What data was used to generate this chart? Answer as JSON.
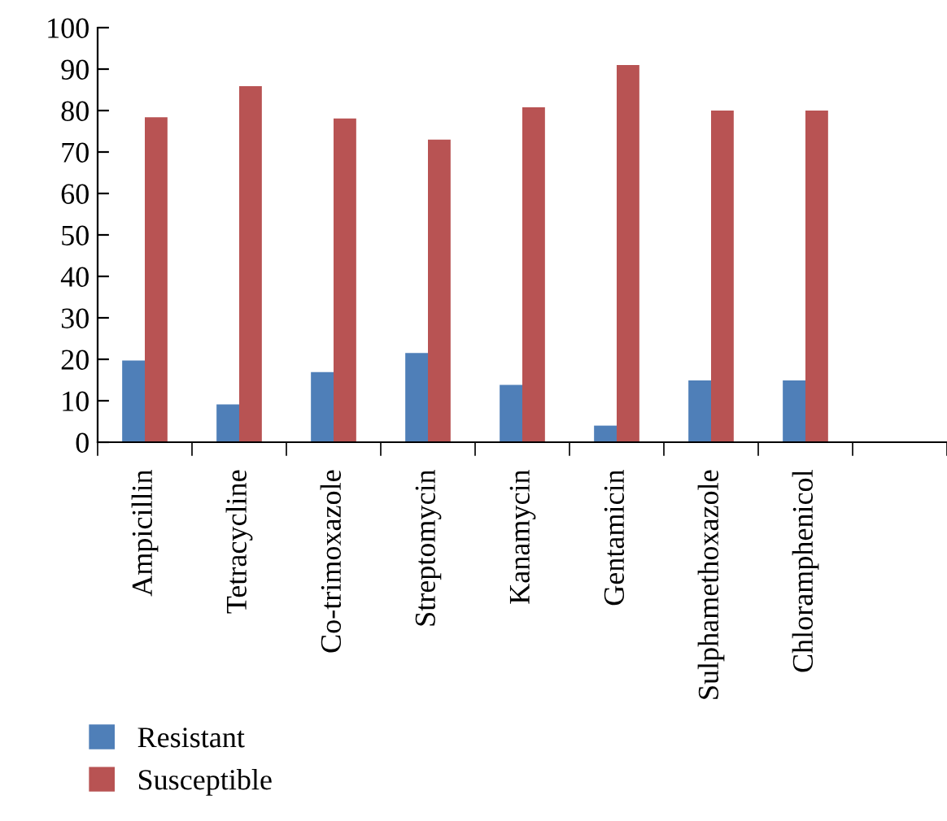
{
  "chart_data": {
    "type": "bar",
    "categories": [
      "Ampicillin",
      "Tetracycline",
      "Co-trimoxazole",
      "Streptomycin",
      "Kanamycin",
      "Gentamicin",
      "Sulphamethoxazole",
      "Chloramphenicol",
      null
    ],
    "series": [
      {
        "name": "Resistant",
        "color": "#4f7fb8",
        "values": [
          19.7,
          9.1,
          16.9,
          21.5,
          13.8,
          4.0,
          14.9,
          14.9,
          null
        ]
      },
      {
        "name": "Susceptible",
        "color": "#b85353",
        "values": [
          78.4,
          85.9,
          78.1,
          73.0,
          80.8,
          91.0,
          80.0,
          80.0,
          null
        ]
      }
    ],
    "ylim": [
      0,
      100
    ],
    "yticks": [
      0,
      10,
      20,
      30,
      40,
      50,
      60,
      70,
      80,
      90,
      100
    ],
    "grid": false,
    "legend": "bottom left"
  }
}
